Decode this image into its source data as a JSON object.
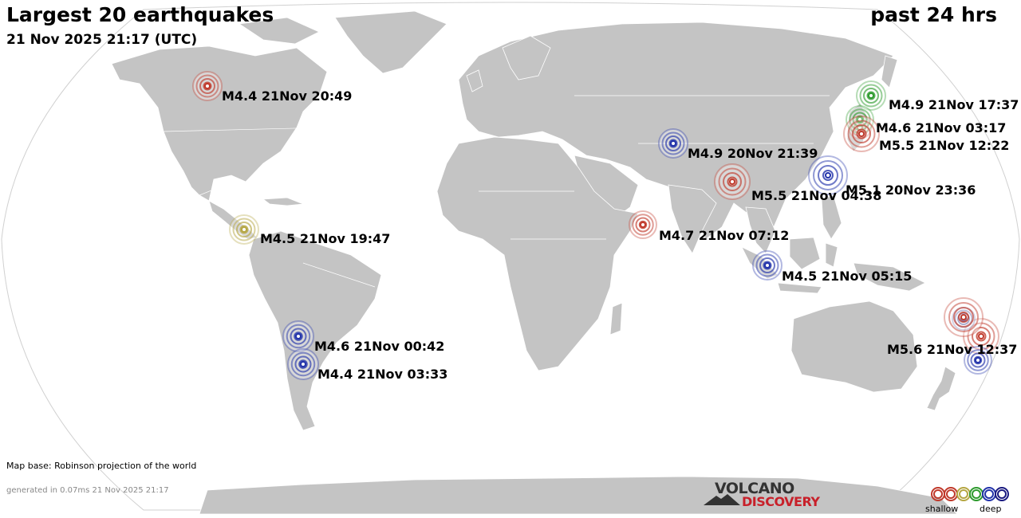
{
  "header": {
    "title": "Largest 20 earthquakes",
    "datetime": "21 Nov 2025 21:17 (UTC)",
    "period": "past 24 hrs"
  },
  "footer": {
    "credit": "Map base: Robinson projection of the world",
    "generated": "generated in 0.07ms 21 Nov 2025 21:17"
  },
  "logo": {
    "line1": "VOLCANO",
    "line2": "DISCOVERY"
  },
  "legend": {
    "shallow": "shallow",
    "deep": "deep",
    "colors": [
      "#c0392b",
      "#c0392b",
      "#b5a642",
      "#2e9b2e",
      "#2233aa",
      "#1a1a80"
    ]
  },
  "colors": {
    "land": "#c4c4c4",
    "ocean": "#ffffff",
    "shallow": "#c0392b",
    "intermediate_shallow": "#b8860b",
    "intermediate": "#2e8b2e",
    "deep": "#2233aa"
  },
  "quakes": [
    {
      "label": "M4.4 21Nov 20:49",
      "color": "#c0392b"
    },
    {
      "label": "M4.9 21Nov 17:37",
      "color": "#2e9b2e"
    },
    {
      "label": "M4.6 21Nov 03:17",
      "color": "#2e9b2e"
    },
    {
      "label": "M5.5 21Nov 12:22",
      "color": "#c0392b"
    },
    {
      "label": "M4.9 20Nov 21:39",
      "color": "#2233aa"
    },
    {
      "label": "M5.5 21Nov 04:38",
      "color": "#c0392b"
    },
    {
      "label": "M5.1 20Nov 23:36",
      "color": "#2233aa"
    },
    {
      "label": "M4.5 21Nov 19:47",
      "color": "#b5a642"
    },
    {
      "label": "M4.7 21Nov 07:12",
      "color": "#c0392b"
    },
    {
      "label": "M4.5 21Nov 05:15",
      "color": "#2233aa"
    },
    {
      "label": "M4.6 21Nov 00:42",
      "color": "#2233aa"
    },
    {
      "label": "M4.4 21Nov 03:33",
      "color": "#2233aa"
    },
    {
      "label": "M5.6 21Nov 12:37",
      "color": "#c0392b"
    }
  ],
  "unlabeled_quakes": [
    {
      "color": "#c0392b"
    },
    {
      "color": "#2233aa"
    },
    {
      "color": "#3a3a8a"
    },
    {
      "color": "#c0392b"
    }
  ]
}
